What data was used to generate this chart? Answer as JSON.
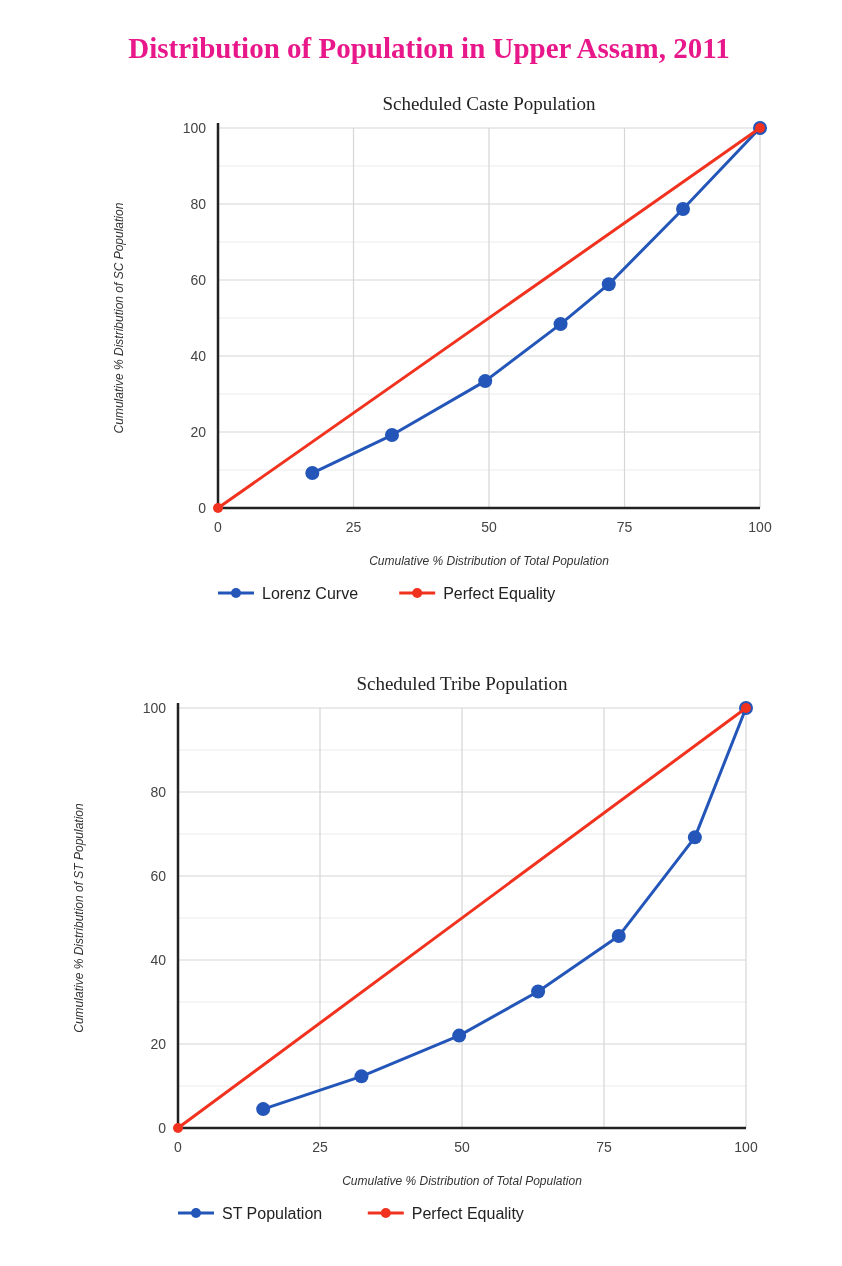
{
  "chart_data": [
    {
      "type": "line",
      "title": "Distribution of Population in Upper Assam, 2011",
      "subtitle": "Scheduled Caste Population",
      "xlabel": "Cumulative % Distribution of Total Population",
      "ylabel": "Cumulative % Distribution of SC Population",
      "xlim": [
        0,
        100
      ],
      "xticks": [
        0,
        25,
        50,
        75,
        100
      ],
      "ylim": [
        0,
        100
      ],
      "yticks": [
        0,
        {
          "value": 10,
          "label": null
        },
        20,
        {
          "value": 30,
          "label": null
        },
        40,
        {
          "value": 50,
          "label": null
        },
        60,
        {
          "value": 70,
          "label": null
        },
        80,
        {
          "value": 90,
          "label": null
        },
        100
      ],
      "grid": true,
      "legend": "bottom left",
      "marker": "circle",
      "line_style": "solid",
      "series": [
        {
          "name": "Lorenz Curve",
          "color": "#2356b8",
          "x": [
            17.4,
            32.1,
            49.3,
            63.2,
            72.1,
            85.8,
            100
          ],
          "values": [
            9.2,
            19.2,
            33.4,
            48.4,
            58.9,
            78.7,
            100
          ]
        },
        {
          "name": "Perfect Equality",
          "color": "#f0321e",
          "x": [
            0,
            100
          ],
          "values": [
            0,
            100
          ]
        }
      ]
    },
    {
      "type": "line",
      "title": "Scheduled Tribe Population",
      "xlabel": "Cumulative % Distribution of Total Population",
      "ylabel": "Cumulative % Distribution of ST Population",
      "xlim": [
        0,
        100
      ],
      "xticks": [
        0,
        25,
        50,
        75,
        100
      ],
      "ylim": [
        0,
        100
      ],
      "yticks": [
        0,
        {
          "value": 10,
          "label": null
        },
        20,
        {
          "value": 30,
          "label": null
        },
        40,
        {
          "value": 50,
          "label": null
        },
        60,
        {
          "value": 70,
          "label": null
        },
        80,
        {
          "value": 90,
          "label": null
        },
        100
      ],
      "grid": true,
      "legend": "bottom left",
      "marker": "circle",
      "line_style": "solid",
      "series": [
        {
          "name": "ST Population",
          "color": "#2356b8",
          "x": [
            15.0,
            32.3,
            49.5,
            63.4,
            77.6,
            91.0,
            100
          ],
          "values": [
            4.5,
            12.3,
            22.0,
            32.5,
            45.7,
            69.2,
            100
          ]
        },
        {
          "name": "Perfect Equality",
          "color": "#f0321e",
          "x": [
            0,
            100
          ],
          "values": [
            0,
            100
          ]
        }
      ]
    }
  ]
}
